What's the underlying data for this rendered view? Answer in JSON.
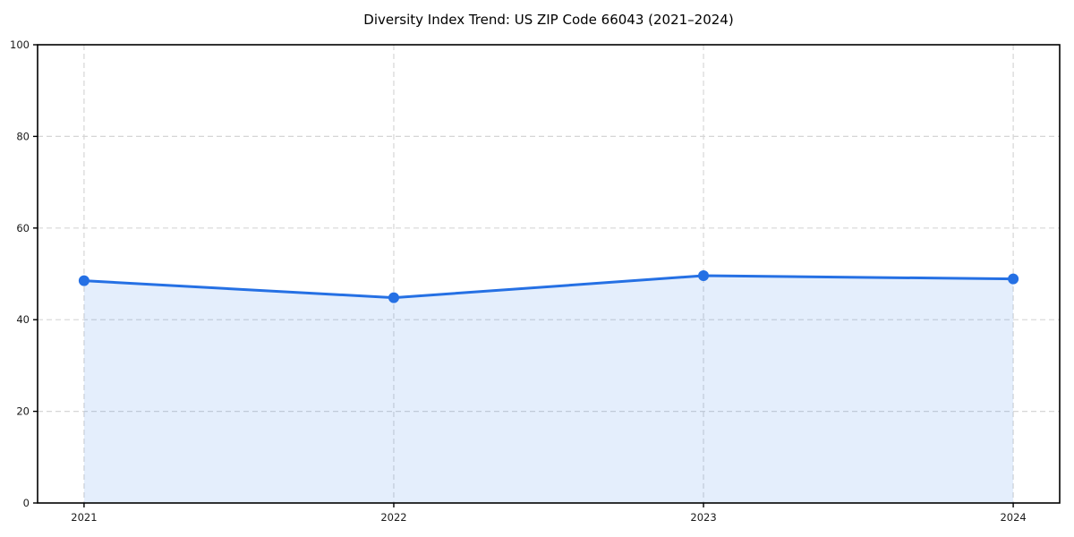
{
  "figure": {
    "title": "Diversity Index Trend: US ZIP Code 66043 (2021–2024)"
  },
  "chart_data": {
    "type": "area",
    "title": "Diversity Index Trend: US ZIP Code 66043 (2021–2024)",
    "categories": [
      "2021",
      "2022",
      "2023",
      "2024"
    ],
    "values": [
      48.5,
      44.8,
      49.6,
      48.9
    ],
    "xlabel": "",
    "ylabel": "",
    "ylim": [
      0,
      100
    ],
    "yticks": [
      0,
      20,
      40,
      60,
      80,
      100
    ],
    "x_margin_years": 0.15,
    "grid": "dashed",
    "legend": "none",
    "marker": "circle",
    "colors": {
      "line": "#2570e4",
      "marker": "#2570e4",
      "fill": "rgba(37, 112, 228, 0.12)",
      "grid": "#d6d6d6",
      "spine": "#000000",
      "tick_label": "#1a1a1a",
      "title": "#000000",
      "background": "#ffffff"
    }
  }
}
